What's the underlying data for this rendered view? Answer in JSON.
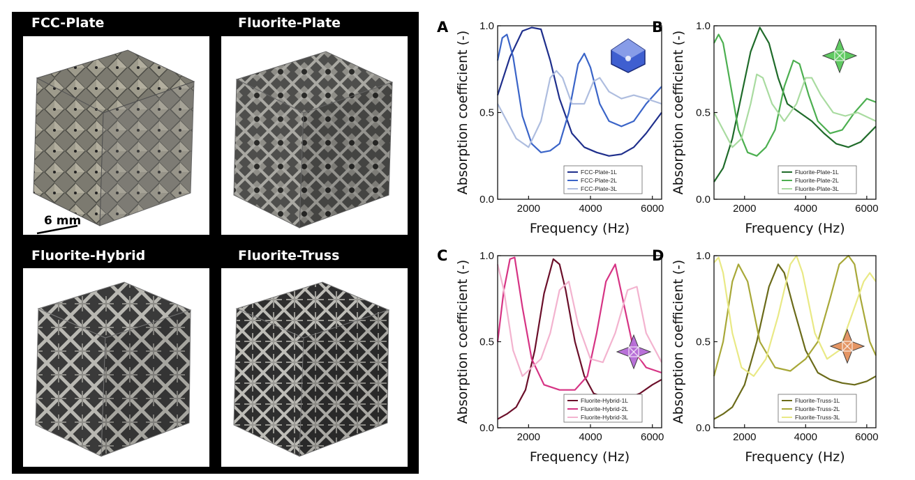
{
  "photos": {
    "titles": [
      "FCC-Plate",
      "Fluorite-Plate",
      "Fluorite-Hybrid",
      "Fluorite-Truss"
    ],
    "scale_bar": "6 mm"
  },
  "chart_data": [
    {
      "type": "line",
      "panel": "A",
      "xlabel": "Frequency (Hz)",
      "ylabel": "Absorption coefficient (-)",
      "xlim": [
        1000,
        6300
      ],
      "ylim": [
        0,
        1
      ],
      "xticks": [
        2000,
        4000,
        6000
      ],
      "yticks": [
        0.0,
        0.5,
        1.0
      ],
      "legend_position": "bottom-right",
      "icon": "fcc-plate-unit-cell-icon",
      "series": [
        {
          "name": "FCC-Plate-1L",
          "color": "#1f2f8c",
          "x": [
            1000,
            1400,
            1800,
            2100,
            2400,
            2700,
            3000,
            3400,
            3800,
            4200,
            4600,
            5000,
            5400,
            5800,
            6300
          ],
          "y": [
            0.6,
            0.82,
            0.97,
            0.99,
            0.98,
            0.8,
            0.58,
            0.38,
            0.3,
            0.27,
            0.25,
            0.26,
            0.3,
            0.38,
            0.5
          ]
        },
        {
          "name": "FCC-Plate-2L",
          "color": "#3a64c8",
          "x": [
            1000,
            1150,
            1300,
            1500,
            1800,
            2100,
            2400,
            2700,
            3000,
            3300,
            3600,
            3800,
            4000,
            4300,
            4600,
            5000,
            5400,
            5800,
            6300
          ],
          "y": [
            0.8,
            0.93,
            0.95,
            0.82,
            0.48,
            0.32,
            0.27,
            0.28,
            0.32,
            0.5,
            0.78,
            0.84,
            0.76,
            0.55,
            0.45,
            0.42,
            0.45,
            0.55,
            0.65
          ]
        },
        {
          "name": "FCC-Plate-3L",
          "color": "#aebddf",
          "x": [
            1000,
            1300,
            1600,
            2000,
            2400,
            2700,
            2900,
            3100,
            3400,
            3800,
            4100,
            4300,
            4600,
            5000,
            5400,
            5800,
            6300
          ],
          "y": [
            0.55,
            0.45,
            0.35,
            0.3,
            0.45,
            0.7,
            0.74,
            0.7,
            0.55,
            0.55,
            0.68,
            0.7,
            0.62,
            0.58,
            0.6,
            0.58,
            0.55
          ]
        }
      ]
    },
    {
      "type": "line",
      "panel": "B",
      "xlabel": "Frequency (Hz)",
      "ylabel": "Absorption coefficient (-)",
      "xlim": [
        1000,
        6300
      ],
      "ylim": [
        0,
        1
      ],
      "xticks": [
        2000,
        4000,
        6000
      ],
      "yticks": [
        0.0,
        0.5,
        1.0
      ],
      "legend_position": "bottom-right",
      "icon": "fluorite-plate-unit-cell-icon",
      "series": [
        {
          "name": "Fluorite-Plate-1L",
          "color": "#1f6b2a",
          "x": [
            1000,
            1300,
            1600,
            1900,
            2200,
            2500,
            2800,
            3100,
            3400,
            3800,
            4200,
            4600,
            5000,
            5400,
            5800,
            6300
          ],
          "y": [
            0.1,
            0.18,
            0.35,
            0.6,
            0.85,
            0.99,
            0.9,
            0.7,
            0.55,
            0.5,
            0.45,
            0.38,
            0.32,
            0.3,
            0.33,
            0.42
          ]
        },
        {
          "name": "Fluorite-Plate-2L",
          "color": "#4caf50",
          "x": [
            1000,
            1150,
            1300,
            1500,
            1800,
            2100,
            2400,
            2700,
            3000,
            3300,
            3600,
            3800,
            4100,
            4400,
            4800,
            5200,
            5600,
            6000,
            6300
          ],
          "y": [
            0.9,
            0.95,
            0.9,
            0.7,
            0.4,
            0.27,
            0.25,
            0.3,
            0.4,
            0.65,
            0.8,
            0.78,
            0.6,
            0.45,
            0.38,
            0.4,
            0.5,
            0.58,
            0.56
          ]
        },
        {
          "name": "Fluorite-Plate-3L",
          "color": "#a9dba0",
          "x": [
            1000,
            1300,
            1600,
            1900,
            2200,
            2400,
            2600,
            2900,
            3300,
            3700,
            4000,
            4200,
            4500,
            4900,
            5300,
            5700,
            6300
          ],
          "y": [
            0.5,
            0.4,
            0.3,
            0.35,
            0.55,
            0.72,
            0.7,
            0.55,
            0.45,
            0.55,
            0.7,
            0.7,
            0.6,
            0.5,
            0.48,
            0.5,
            0.45
          ]
        }
      ]
    },
    {
      "type": "line",
      "panel": "C",
      "xlabel": "Frequency (Hz)",
      "ylabel": "Absorption coefficient (-)",
      "xlim": [
        1000,
        6300
      ],
      "ylim": [
        0,
        1
      ],
      "xticks": [
        2000,
        4000,
        6000
      ],
      "yticks": [
        0.0,
        0.5,
        1.0
      ],
      "legend_position": "bottom-right",
      "icon": "fluorite-hybrid-unit-cell-icon",
      "series": [
        {
          "name": "Fluorite-Hybrid-1L",
          "color": "#6b0f2a",
          "x": [
            1000,
            1300,
            1600,
            1900,
            2200,
            2500,
            2800,
            3000,
            3200,
            3500,
            3800,
            4100,
            4400,
            4800,
            5200,
            5600,
            6000,
            6300
          ],
          "y": [
            0.05,
            0.08,
            0.12,
            0.22,
            0.45,
            0.78,
            0.98,
            0.95,
            0.8,
            0.5,
            0.3,
            0.2,
            0.18,
            0.18,
            0.17,
            0.2,
            0.25,
            0.28
          ]
        },
        {
          "name": "Fluorite-Hybrid-2L",
          "color": "#d63384",
          "x": [
            1000,
            1200,
            1400,
            1550,
            1800,
            2100,
            2500,
            3000,
            3500,
            3900,
            4200,
            4500,
            4800,
            5100,
            5400,
            5800,
            6300
          ],
          "y": [
            0.5,
            0.8,
            0.98,
            0.99,
            0.7,
            0.4,
            0.25,
            0.22,
            0.22,
            0.3,
            0.55,
            0.85,
            0.95,
            0.7,
            0.45,
            0.35,
            0.32
          ]
        },
        {
          "name": "Fluorite-Hybrid-3L",
          "color": "#f3b3cf",
          "x": [
            1000,
            1200,
            1500,
            1800,
            2100,
            2400,
            2700,
            3000,
            3300,
            3600,
            4000,
            4400,
            4800,
            5200,
            5500,
            5800,
            6300
          ],
          "y": [
            0.95,
            0.8,
            0.45,
            0.3,
            0.35,
            0.4,
            0.55,
            0.8,
            0.85,
            0.6,
            0.4,
            0.38,
            0.55,
            0.8,
            0.82,
            0.55,
            0.38
          ]
        }
      ]
    },
    {
      "type": "line",
      "panel": "D",
      "xlabel": "Frequency (Hz)",
      "ylabel": "Absorption coefficient (-)",
      "xlim": [
        1000,
        6300
      ],
      "ylim": [
        0,
        1
      ],
      "xticks": [
        2000,
        4000,
        6000
      ],
      "yticks": [
        0.0,
        0.5,
        1.0
      ],
      "legend_position": "bottom-right",
      "icon": "fluorite-truss-unit-cell-icon",
      "series": [
        {
          "name": "Fluorite-Truss-1L",
          "color": "#6b6b1a",
          "x": [
            1000,
            1300,
            1600,
            2000,
            2400,
            2800,
            3100,
            3300,
            3600,
            4000,
            4400,
            4800,
            5200,
            5600,
            6000,
            6300
          ],
          "y": [
            0.05,
            0.08,
            0.12,
            0.25,
            0.5,
            0.82,
            0.95,
            0.9,
            0.7,
            0.45,
            0.32,
            0.28,
            0.26,
            0.25,
            0.27,
            0.3
          ]
        },
        {
          "name": "Fluorite-Truss-2L",
          "color": "#a8a838",
          "x": [
            1000,
            1300,
            1600,
            1800,
            2100,
            2500,
            3000,
            3500,
            4000,
            4400,
            4800,
            5100,
            5400,
            5600,
            5800,
            6100,
            6300
          ],
          "y": [
            0.3,
            0.5,
            0.85,
            0.95,
            0.85,
            0.5,
            0.35,
            0.33,
            0.4,
            0.5,
            0.75,
            0.95,
            1.0,
            0.95,
            0.75,
            0.5,
            0.42
          ]
        },
        {
          "name": "Fluorite-Truss-3L",
          "color": "#e9e985",
          "x": [
            1000,
            1150,
            1300,
            1600,
            1900,
            2300,
            2700,
            3100,
            3500,
            3700,
            3900,
            4300,
            4700,
            5100,
            5500,
            5900,
            6100,
            6300
          ],
          "y": [
            0.96,
            0.99,
            0.9,
            0.55,
            0.35,
            0.3,
            0.4,
            0.65,
            0.95,
            1.0,
            0.9,
            0.55,
            0.4,
            0.45,
            0.65,
            0.85,
            0.9,
            0.85
          ]
        }
      ]
    }
  ]
}
